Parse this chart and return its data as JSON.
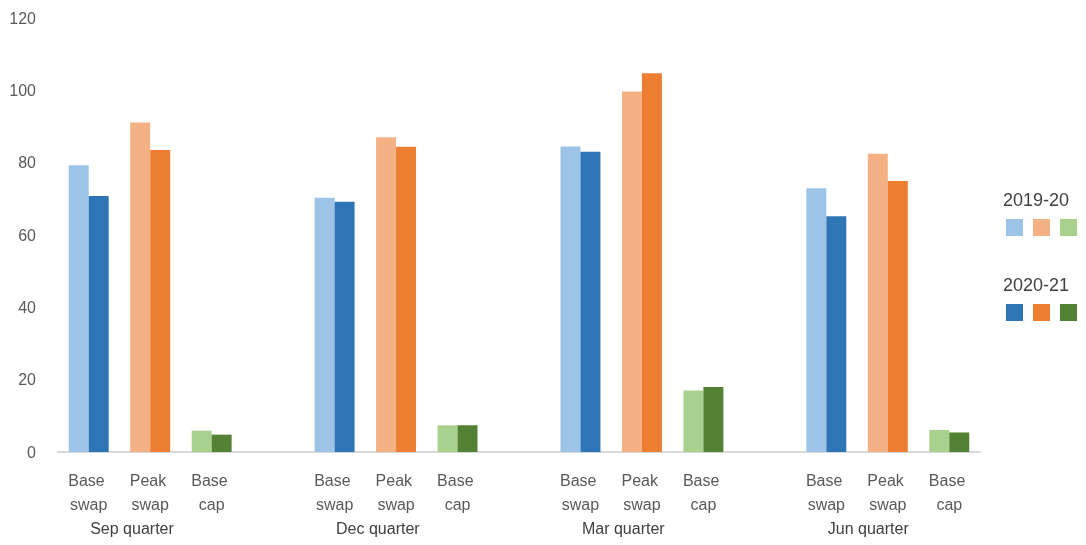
{
  "chart_data": {
    "type": "bar",
    "categories": [
      "Base swap",
      "Peak swap",
      "Base cap",
      null,
      "Base swap",
      "Peak swap",
      "Base cap",
      null,
      "Base swap",
      "Peak swap",
      "Base cap",
      null,
      "Base swap",
      "Peak swap",
      "Base cap"
    ],
    "series": [
      {
        "name": "2019-20",
        "values": [
          79.3,
          91.1,
          5.9,
          null,
          70.3,
          87.0,
          7.4,
          null,
          84.5,
          99.7,
          17.0,
          null,
          72.9,
          82.5,
          6.1
        ],
        "colors": [
          "#9dc3e6",
          "#f4b183",
          "#a9d18e",
          null,
          "#9dc3e6",
          "#f4b183",
          "#a9d18e",
          null,
          "#9dc3e6",
          "#f4b183",
          "#a9d18e",
          null,
          "#9dc3e6",
          "#f4b183",
          "#a9d18e"
        ]
      },
      {
        "name": "2020-21",
        "values": [
          70.8,
          83.5,
          4.8,
          null,
          69.2,
          84.4,
          7.4,
          null,
          83.0,
          104.7,
          18.0,
          null,
          65.2,
          74.9,
          5.4
        ],
        "colors": [
          "#2e75b6",
          "#ed7d31",
          "#548235",
          null,
          "#2e75b6",
          "#ed7d31",
          "#548235",
          null,
          "#2e75b6",
          "#ed7d31",
          "#548235",
          null,
          "#2e75b6",
          "#ed7d31",
          "#548235"
        ]
      }
    ],
    "annotations": [
      "Sep quarter",
      "Dec quarter",
      "Mar quarter",
      "Jun quarter"
    ],
    "ylim": [
      0,
      120
    ],
    "yticks": [
      0,
      20,
      40,
      60,
      80,
      100,
      120
    ],
    "grid": false,
    "legend": "right"
  }
}
